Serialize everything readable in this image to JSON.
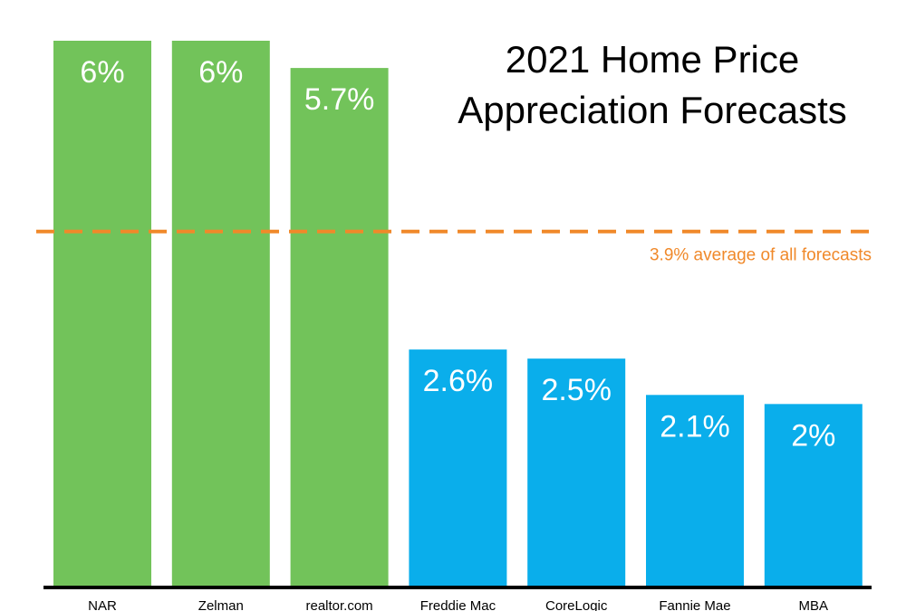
{
  "chart_data": {
    "type": "bar",
    "title_line1": "2021 Home Price",
    "title_line2": "Appreciation Forecasts",
    "categories": [
      "NAR",
      "Zelman",
      "realtor.com",
      "Freddie Mac",
      "CoreLogic",
      "Fannie Mae",
      "MBA"
    ],
    "values": [
      6,
      6,
      5.7,
      2.6,
      2.5,
      2.1,
      2
    ],
    "data_labels": [
      "6%",
      "6%",
      "5.7%",
      "2.6%",
      "2.5%",
      "2.1%",
      "2%"
    ],
    "bar_colors": [
      "#72C35A",
      "#72C35A",
      "#72C35A",
      "#0AAEEB",
      "#0AAEEB",
      "#0AAEEB",
      "#0AAEEB"
    ],
    "reference_line": {
      "value": 3.9,
      "label": "3.9% average of all forecasts",
      "color": "#F0892A",
      "style": "dashed"
    },
    "xlabel": "",
    "ylabel": "",
    "ylim": [
      0,
      6
    ],
    "grid": false,
    "legend": "none"
  }
}
